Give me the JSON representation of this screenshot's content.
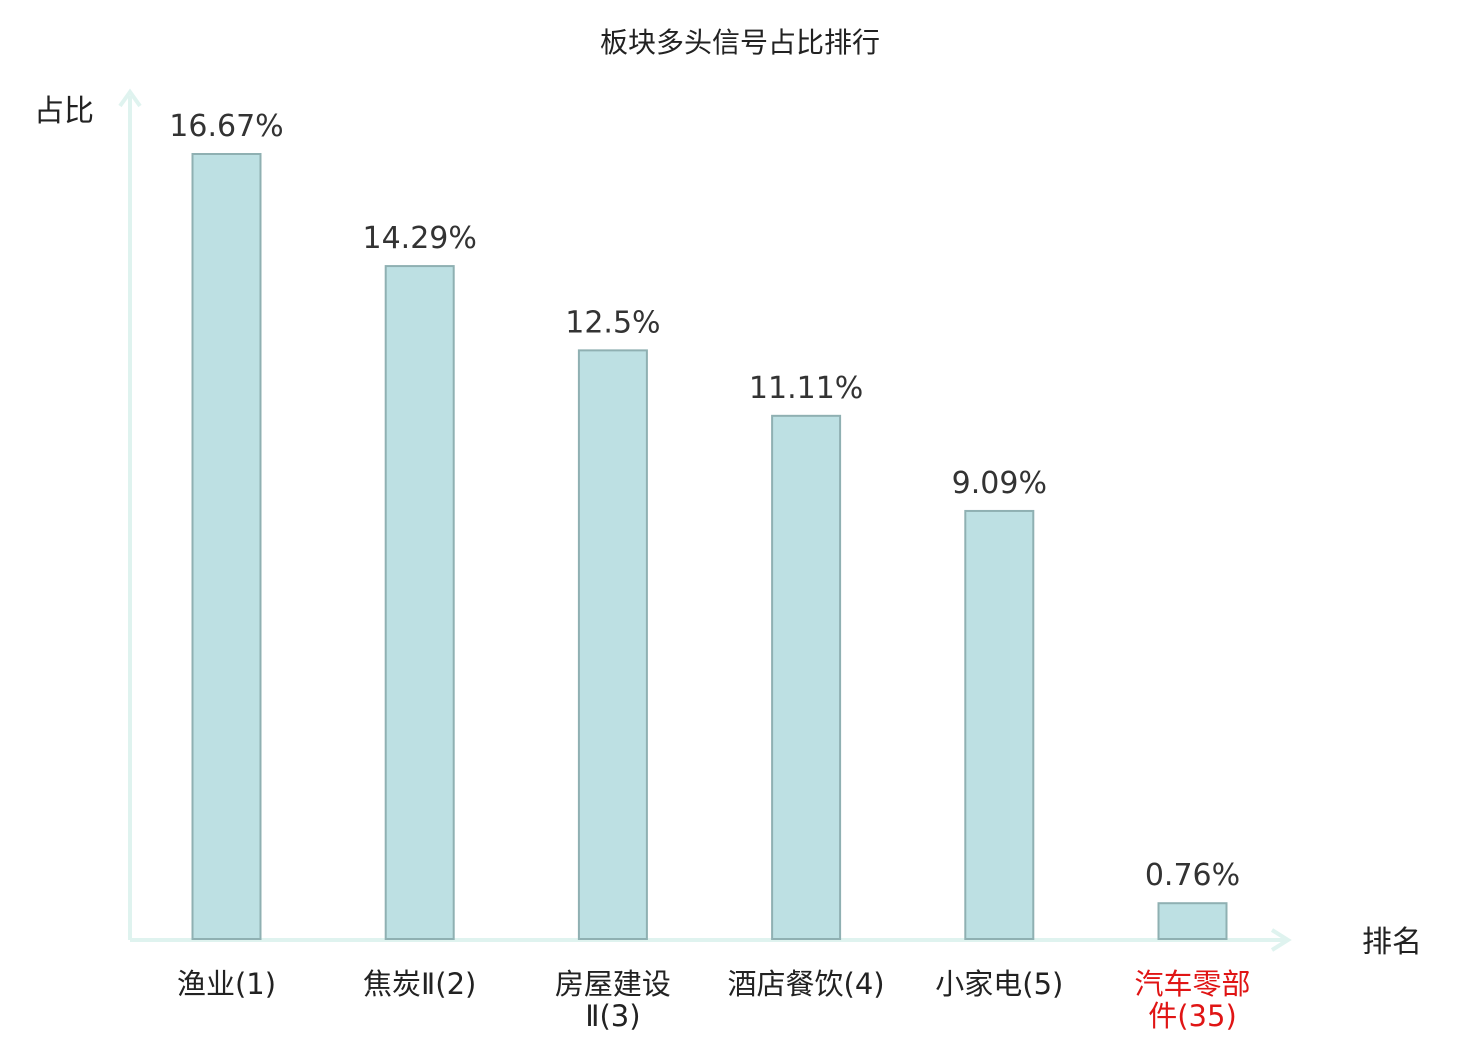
{
  "chart_data": {
    "type": "bar",
    "title": "板块多头信号占比排行",
    "ylabel": "占比",
    "xlabel": "排名",
    "categories": [
      [
        "渔业(1)"
      ],
      [
        "焦炭Ⅱ(2)"
      ],
      [
        "房屋建设",
        "Ⅱ(3)"
      ],
      [
        "酒店餐饮(4)"
      ],
      [
        "小家电(5)"
      ],
      [
        "汽车零部",
        "件(35)"
      ]
    ],
    "values": [
      16.67,
      14.29,
      12.5,
      11.11,
      9.09,
      0.76
    ],
    "value_labels": [
      "16.67%",
      "14.29%",
      "12.5%",
      "11.11%",
      "9.09%",
      "0.76%"
    ],
    "highlight_index": 5,
    "ylim": [
      0,
      16.67
    ],
    "grid": false,
    "colors": {
      "bar_fill": "#bde0e3",
      "bar_stroke": "#8fb0b2",
      "axis": "#dff3ef",
      "text": "#222222",
      "value_text": "#333333",
      "highlight_text": "#e01515"
    }
  }
}
